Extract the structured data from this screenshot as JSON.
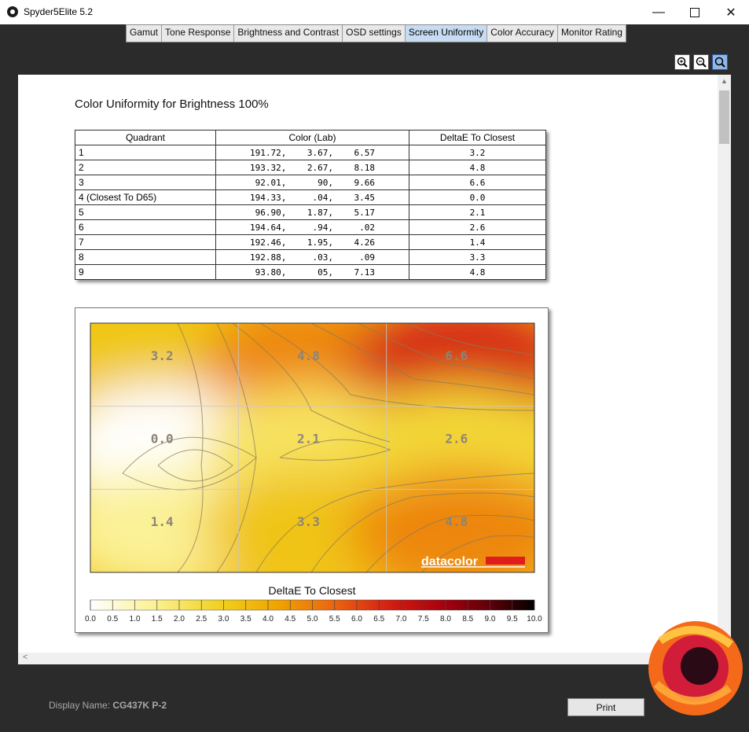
{
  "window": {
    "title": "Spyder5Elite 5.2"
  },
  "tabs": [
    "Gamut",
    "Tone Response",
    "Brightness and Contrast",
    "OSD settings",
    "Screen Uniformity",
    "Color Accuracy",
    "Monitor Rating"
  ],
  "active_tab": "Screen Uniformity",
  "toolbar": {
    "icons": [
      "zoom-in-icon",
      "zoom-out-icon",
      "zoom-fit-icon"
    ]
  },
  "report": {
    "title": "Color Uniformity for Brightness 100%",
    "table": {
      "headers": [
        "Quadrant",
        "Color (Lab)",
        "DeltaE To Closest"
      ],
      "rows": [
        {
          "quadrant": "1",
          "lab": "191.72,    3.67,    6.57",
          "delta": "3.2"
        },
        {
          "quadrant": "2",
          "lab": "193.32,    2.67,    8.18",
          "delta": "4.8"
        },
        {
          "quadrant": "3",
          "lab": " 92.01,      90,    9.66",
          "delta": "6.6"
        },
        {
          "quadrant": "4 (Closest To D65)",
          "lab": "194.33,     .04,    3.45",
          "delta": "0.0"
        },
        {
          "quadrant": "5",
          "lab": " 96.90,    1.87,    5.17",
          "delta": "2.1"
        },
        {
          "quadrant": "6",
          "lab": "194.64,     .94,     .02",
          "delta": "2.6"
        },
        {
          "quadrant": "7",
          "lab": "192.46,    1.95,    4.26",
          "delta": "1.4"
        },
        {
          "quadrant": "8",
          "lab": "192.88,     .03,     .09",
          "delta": "3.3"
        },
        {
          "quadrant": "9",
          "lab": " 93.80,      05,    7.13",
          "delta": "4.8"
        }
      ]
    }
  },
  "chart_data": {
    "type": "heatmap",
    "grid": "3x3",
    "cell_values": [
      [
        3.2,
        4.8,
        6.6
      ],
      [
        0.0,
        2.1,
        2.6
      ],
      [
        1.4,
        3.3,
        4.8
      ]
    ],
    "cell_labels": [
      "3.2",
      "4.8",
      "6.6",
      "0.0",
      "2.1",
      "2.6",
      "1.4",
      "3.3",
      "4.8"
    ],
    "colorbar": {
      "title": "DeltaE To Closest",
      "range": [
        0,
        10
      ],
      "ticks": [
        "0.0",
        "0.5",
        "1.0",
        "1.5",
        "2.0",
        "2.5",
        "3.0",
        "3.5",
        "4.0",
        "4.5",
        "5.0",
        "5.5",
        "6.0",
        "6.5",
        "7.0",
        "7.5",
        "8.0",
        "8.5",
        "9.0",
        "9.5",
        "10.0"
      ]
    },
    "watermark": "datacolor"
  },
  "status": {
    "display_name_label": "Display Name:",
    "display_name_value": "CG437K P-2"
  },
  "buttons": {
    "print": "Print"
  }
}
